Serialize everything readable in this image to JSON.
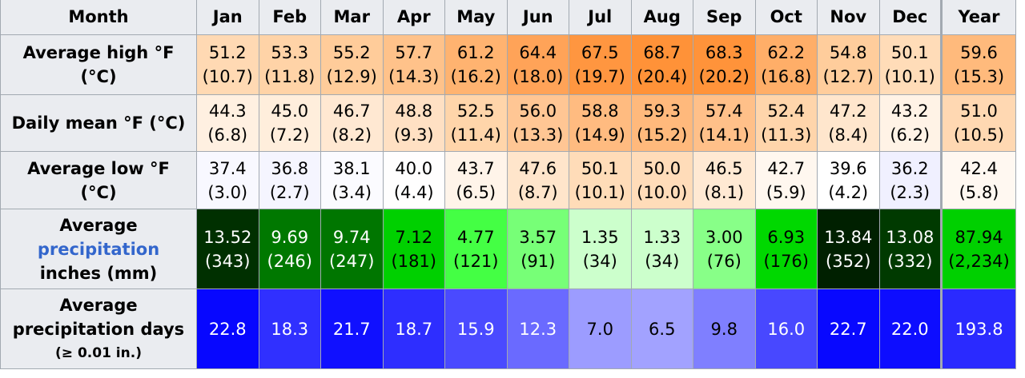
{
  "table": {
    "header": [
      "Month",
      "Jan",
      "Feb",
      "Mar",
      "Apr",
      "May",
      "Jun",
      "Jul",
      "Aug",
      "Sep",
      "Oct",
      "Nov",
      "Dec",
      "Year"
    ],
    "rows": [
      {
        "label": [
          "Average high °F",
          "(°C)"
        ],
        "cells": [
          {
            "top": "51.2",
            "bottom": "(10.7)",
            "color": "#ffd9b3",
            "text_color": "#000000"
          },
          {
            "top": "53.3",
            "bottom": "(11.8)",
            "color": "#ffd3a7",
            "text_color": "#000000"
          },
          {
            "top": "55.2",
            "bottom": "(12.9)",
            "color": "#ffcc9a",
            "text_color": "#000000"
          },
          {
            "top": "57.7",
            "bottom": "(14.3)",
            "color": "#ffc28a",
            "text_color": "#000000"
          },
          {
            "top": "61.2",
            "bottom": "(16.2)",
            "color": "#ffb370",
            "text_color": "#000000"
          },
          {
            "top": "64.4",
            "bottom": "(18.0)",
            "color": "#ffa358",
            "text_color": "#000000"
          },
          {
            "top": "67.5",
            "bottom": "(19.7)",
            "color": "#ff9640",
            "text_color": "#000000"
          },
          {
            "top": "68.7",
            "bottom": "(20.4)",
            "color": "#ff9238",
            "text_color": "#000000"
          },
          {
            "top": "68.3",
            "bottom": "(20.2)",
            "color": "#ff933a",
            "text_color": "#000000"
          },
          {
            "top": "62.2",
            "bottom": "(16.8)",
            "color": "#ffae68",
            "text_color": "#000000"
          },
          {
            "top": "54.8",
            "bottom": "(12.7)",
            "color": "#ffcd9c",
            "text_color": "#000000"
          },
          {
            "top": "50.1",
            "bottom": "(10.1)",
            "color": "#ffdcb8",
            "text_color": "#000000"
          },
          {
            "top": "59.6",
            "bottom": "(15.3)",
            "color": "#ffba7c",
            "text_color": "#000000"
          }
        ]
      },
      {
        "label": [
          "Daily mean °F (°C)"
        ],
        "cells": [
          {
            "top": "44.3",
            "bottom": "(6.8)",
            "color": "#fff0e1",
            "text_color": "#000000"
          },
          {
            "top": "45.0",
            "bottom": "(7.2)",
            "color": "#ffeedc",
            "text_color": "#000000"
          },
          {
            "top": "46.7",
            "bottom": "(8.2)",
            "color": "#ffe8d2",
            "text_color": "#000000"
          },
          {
            "top": "48.8",
            "bottom": "(9.3)",
            "color": "#ffe0c3",
            "text_color": "#000000"
          },
          {
            "top": "52.5",
            "bottom": "(11.4)",
            "color": "#ffd5aa",
            "text_color": "#000000"
          },
          {
            "top": "56.0",
            "bottom": "(13.3)",
            "color": "#ffc694",
            "text_color": "#000000"
          },
          {
            "top": "58.8",
            "bottom": "(14.9)",
            "color": "#ffbb80",
            "text_color": "#000000"
          },
          {
            "top": "59.3",
            "bottom": "(15.2)",
            "color": "#ffb97c",
            "text_color": "#000000"
          },
          {
            "top": "57.4",
            "bottom": "(14.1)",
            "color": "#ffc089",
            "text_color": "#000000"
          },
          {
            "top": "52.4",
            "bottom": "(11.3)",
            "color": "#ffd5ab",
            "text_color": "#000000"
          },
          {
            "top": "47.2",
            "bottom": "(8.4)",
            "color": "#ffe6cd",
            "text_color": "#000000"
          },
          {
            "top": "43.2",
            "bottom": "(6.2)",
            "color": "#fff3e6",
            "text_color": "#000000"
          },
          {
            "top": "51.0",
            "bottom": "(10.5)",
            "color": "#ffd8b2",
            "text_color": "#000000"
          }
        ]
      },
      {
        "label": [
          "Average low °F",
          "(°C)"
        ],
        "cells": [
          {
            "top": "37.4",
            "bottom": "(3.0)",
            "color": "#f8f8ff",
            "text_color": "#000000"
          },
          {
            "top": "36.8",
            "bottom": "(2.7)",
            "color": "#f5f5ff",
            "text_color": "#000000"
          },
          {
            "top": "38.1",
            "bottom": "(3.4)",
            "color": "#fbfbff",
            "text_color": "#000000"
          },
          {
            "top": "40.0",
            "bottom": "(4.4)",
            "color": "#fffefe",
            "text_color": "#000000"
          },
          {
            "top": "43.7",
            "bottom": "(6.5)",
            "color": "#fff4e9",
            "text_color": "#000000"
          },
          {
            "top": "47.6",
            "bottom": "(8.7)",
            "color": "#ffe5cb",
            "text_color": "#000000"
          },
          {
            "top": "50.1",
            "bottom": "(10.1)",
            "color": "#ffdcb8",
            "text_color": "#000000"
          },
          {
            "top": "50.0",
            "bottom": "(10.0)",
            "color": "#ffdcb9",
            "text_color": "#000000"
          },
          {
            "top": "46.5",
            "bottom": "(8.1)",
            "color": "#ffe9d3",
            "text_color": "#000000"
          },
          {
            "top": "42.7",
            "bottom": "(5.9)",
            "color": "#fff7ef",
            "text_color": "#000000"
          },
          {
            "top": "39.6",
            "bottom": "(4.2)",
            "color": "#ffffff",
            "text_color": "#000000"
          },
          {
            "top": "36.2",
            "bottom": "(2.3)",
            "color": "#f0f0ff",
            "text_color": "#000000"
          },
          {
            "top": "42.4",
            "bottom": "(5.8)",
            "color": "#fff8f1",
            "text_color": "#000000"
          }
        ]
      },
      {
        "label": [
          "Average",
          "precipitation",
          "inches (mm)"
        ],
        "cells": [
          {
            "top": "13.52",
            "bottom": "(343)",
            "color": "#003000",
            "text_color": "#ffffff"
          },
          {
            "top": "9.69",
            "bottom": "(246)",
            "color": "#007800",
            "text_color": "#ffffff"
          },
          {
            "top": "9.74",
            "bottom": "(247)",
            "color": "#007600",
            "text_color": "#ffffff"
          },
          {
            "top": "7.12",
            "bottom": "(181)",
            "color": "#00d000",
            "text_color": "#000000"
          },
          {
            "top": "4.77",
            "bottom": "(121)",
            "color": "#44ff44",
            "text_color": "#000000"
          },
          {
            "top": "3.57",
            "bottom": "(91)",
            "color": "#77ff77",
            "text_color": "#000000"
          },
          {
            "top": "1.35",
            "bottom": "(34)",
            "color": "#ccffcc",
            "text_color": "#000000"
          },
          {
            "top": "1.33",
            "bottom": "(34)",
            "color": "#ccffcc",
            "text_color": "#000000"
          },
          {
            "top": "3.00",
            "bottom": "(76)",
            "color": "#88ff88",
            "text_color": "#000000"
          },
          {
            "top": "6.93",
            "bottom": "(176)",
            "color": "#00d800",
            "text_color": "#000000"
          },
          {
            "top": "13.84",
            "bottom": "(352)",
            "color": "#002000",
            "text_color": "#ffffff"
          },
          {
            "top": "13.08",
            "bottom": "(332)",
            "color": "#003a00",
            "text_color": "#ffffff"
          },
          {
            "top": "87.94",
            "bottom": "(2,234)",
            "color": "#00d000",
            "text_color": "#000000"
          }
        ]
      },
      {
        "label": [
          "Average",
          "precipitation days",
          "(≥ 0.01 in.)"
        ],
        "cells": [
          {
            "top": "22.8",
            "color": "#0707ff",
            "text_color": "#ffffff"
          },
          {
            "top": "18.3",
            "color": "#3030ff",
            "text_color": "#ffffff"
          },
          {
            "top": "21.7",
            "color": "#1010ff",
            "text_color": "#ffffff"
          },
          {
            "top": "18.7",
            "color": "#2e2eff",
            "text_color": "#ffffff"
          },
          {
            "top": "15.9",
            "color": "#4a4aff",
            "text_color": "#ffffff"
          },
          {
            "top": "12.3",
            "color": "#6a6aff",
            "text_color": "#ffffff"
          },
          {
            "top": "7.0",
            "color": "#9c9cff",
            "text_color": "#000000"
          },
          {
            "top": "6.5",
            "color": "#a2a2ff",
            "text_color": "#000000"
          },
          {
            "top": "9.8",
            "color": "#7f7fff",
            "text_color": "#000000"
          },
          {
            "top": "16.0",
            "color": "#4848ff",
            "text_color": "#ffffff"
          },
          {
            "top": "22.7",
            "color": "#0808ff",
            "text_color": "#ffffff"
          },
          {
            "top": "22.0",
            "color": "#0d0dff",
            "text_color": "#ffffff"
          },
          {
            "top": "193.8",
            "color": "#2a2aff",
            "text_color": "#ffffff"
          }
        ]
      }
    ]
  }
}
